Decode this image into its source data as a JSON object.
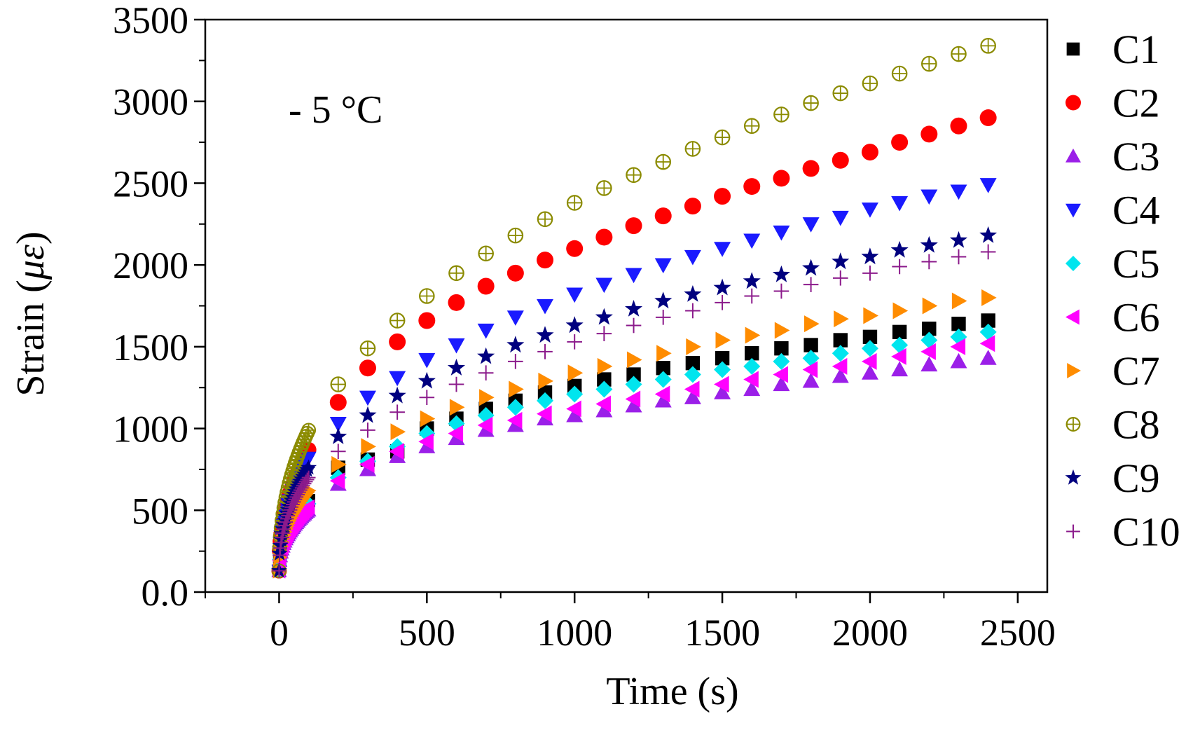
{
  "chart_data": {
    "type": "scatter",
    "title": "",
    "annotation": "- 5 °C",
    "xlabel": "Time (s)",
    "ylabel": "Strain (",
    "ylabel_symbol": "μ",
    "ylabel_symbol2": "ε",
    "ylabel_close": ")",
    "xlim": [
      -250,
      2600
    ],
    "ylim": [
      0,
      3500
    ],
    "xticks": [
      0,
      500,
      1000,
      1500,
      2000,
      2500
    ],
    "xtick_labels": [
      "0",
      "500",
      "1000",
      "1500",
      "2000",
      "2500"
    ],
    "yticks": [
      0,
      500,
      1000,
      1500,
      2000,
      2500,
      3000,
      3500
    ],
    "ytick_labels": [
      "0.0",
      "500",
      "1000",
      "1500",
      "2000",
      "2500",
      "3000",
      "3500"
    ],
    "legend_position": "right",
    "grid": false,
    "x": [
      200,
      300,
      400,
      500,
      600,
      700,
      800,
      900,
      1000,
      1100,
      1200,
      1300,
      1400,
      1500,
      1600,
      1700,
      1800,
      1900,
      2000,
      2100,
      2200,
      2300,
      2400
    ],
    "series": [
      {
        "name": "C1",
        "marker": "square",
        "color": "#000000",
        "early_max": 560,
        "values": [
          760,
          810,
          860,
          1000,
          1060,
          1120,
          1170,
          1220,
          1260,
          1300,
          1330,
          1370,
          1400,
          1430,
          1460,
          1490,
          1510,
          1540,
          1560,
          1590,
          1610,
          1640,
          1660
        ]
      },
      {
        "name": "C2",
        "marker": "circle",
        "color": "#ff0000",
        "early_max": 870,
        "values": [
          1160,
          1370,
          1530,
          1660,
          1770,
          1870,
          1950,
          2030,
          2100,
          2170,
          2240,
          2300,
          2360,
          2420,
          2480,
          2530,
          2590,
          2640,
          2690,
          2750,
          2800,
          2850,
          2900
        ]
      },
      {
        "name": "C3",
        "marker": "triangle-up",
        "color": "#9b1fe8",
        "early_max": 500,
        "values": [
          660,
          750,
          830,
          890,
          940,
          990,
          1020,
          1060,
          1080,
          1110,
          1140,
          1170,
          1190,
          1220,
          1240,
          1270,
          1290,
          1320,
          1340,
          1360,
          1390,
          1410,
          1430
        ]
      },
      {
        "name": "C4",
        "marker": "triangle-down",
        "color": "#1a1aff",
        "early_max": 820,
        "values": [
          1030,
          1190,
          1310,
          1420,
          1510,
          1600,
          1680,
          1750,
          1820,
          1880,
          1940,
          2000,
          2050,
          2100,
          2150,
          2200,
          2250,
          2290,
          2340,
          2380,
          2420,
          2450,
          2490
        ]
      },
      {
        "name": "C5",
        "marker": "diamond",
        "color": "#00e5ee",
        "early_max": 540,
        "values": [
          700,
          800,
          890,
          970,
          1030,
          1080,
          1130,
          1170,
          1210,
          1240,
          1270,
          1300,
          1330,
          1360,
          1380,
          1410,
          1430,
          1460,
          1490,
          1510,
          1540,
          1560,
          1590
        ]
      },
      {
        "name": "C6",
        "marker": "triangle-left",
        "color": "#ff00ff",
        "early_max": 520,
        "values": [
          680,
          780,
          860,
          920,
          970,
          1020,
          1050,
          1090,
          1120,
          1150,
          1180,
          1210,
          1240,
          1270,
          1300,
          1330,
          1360,
          1380,
          1410,
          1440,
          1470,
          1500,
          1520
        ]
      },
      {
        "name": "C7",
        "marker": "triangle-right",
        "color": "#ff8c00",
        "early_max": 620,
        "values": [
          780,
          890,
          980,
          1060,
          1130,
          1190,
          1240,
          1290,
          1340,
          1380,
          1420,
          1460,
          1500,
          1540,
          1570,
          1600,
          1640,
          1670,
          1690,
          1720,
          1750,
          1780,
          1800
        ]
      },
      {
        "name": "C8",
        "marker": "circle-cross",
        "color": "#8b8b00",
        "early_max": 990,
        "values": [
          1270,
          1490,
          1660,
          1810,
          1950,
          2070,
          2180,
          2280,
          2380,
          2470,
          2550,
          2630,
          2710,
          2780,
          2850,
          2920,
          2990,
          3050,
          3110,
          3170,
          3230,
          3290,
          3340
        ]
      },
      {
        "name": "C9",
        "marker": "star",
        "color": "#00007f",
        "early_max": 760,
        "values": [
          950,
          1080,
          1200,
          1290,
          1370,
          1440,
          1510,
          1570,
          1630,
          1680,
          1730,
          1780,
          1820,
          1860,
          1900,
          1940,
          1980,
          2020,
          2050,
          2090,
          2120,
          2150,
          2180
        ]
      },
      {
        "name": "C10",
        "marker": "plus",
        "color": "#8b1a8b",
        "early_max": 700,
        "values": [
          860,
          990,
          1100,
          1190,
          1270,
          1340,
          1410,
          1470,
          1530,
          1580,
          1630,
          1680,
          1720,
          1770,
          1810,
          1840,
          1880,
          1920,
          1950,
          1990,
          2020,
          2050,
          2080
        ]
      }
    ]
  }
}
